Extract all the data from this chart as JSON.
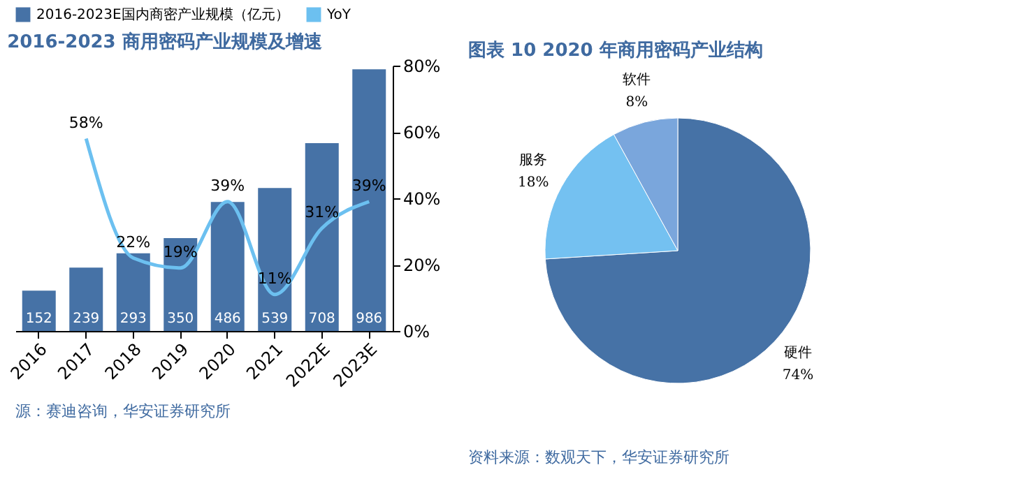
{
  "chart_data": [
    {
      "type": "bar",
      "title": "2016-2023 商用密码产业规模及增速",
      "categories": [
        "2016",
        "2017",
        "2018",
        "2019",
        "2020",
        "2021",
        "2022E",
        "2023E"
      ],
      "series": [
        {
          "name": "2016-2023E国内商密产业规模（亿元）",
          "color": "#4672a6",
          "values": [
            152,
            239,
            293,
            350,
            486,
            539,
            708,
            986
          ],
          "value_labels": [
            "152",
            "239",
            "293",
            "350",
            "486",
            "539",
            "708",
            "986"
          ]
        },
        {
          "name": "YoY",
          "type": "line",
          "axis": "y2",
          "color": "#6cc0f0",
          "values": [
            null,
            58,
            22,
            19,
            39,
            11,
            31,
            39
          ],
          "value_labels": [
            null,
            "58%",
            "22%",
            "19%",
            "39%",
            "11%",
            "31%",
            "39%"
          ]
        }
      ],
      "y2lim": [
        0,
        80
      ],
      "y2ticks": [
        {
          "value": 0,
          "label": "0%"
        },
        {
          "value": 20,
          "label": "20%"
        },
        {
          "value": 40,
          "label": "40%"
        },
        {
          "value": 60,
          "label": "60%"
        },
        {
          "value": 80,
          "label": "80%"
        }
      ],
      "legend": "top",
      "grid": false,
      "annotations": [
        "源：赛迪咨询，华安证券研究所"
      ]
    },
    {
      "type": "pie",
      "title": "图表 10 2020 年商用密码产业结构",
      "categories": [
        "硬件",
        "服务",
        "软件"
      ],
      "values": [
        74,
        18,
        8
      ],
      "colors": [
        "#4672a6",
        "#74c1f1",
        "#7aa6dc"
      ],
      "value_labels": [
        "74%",
        "18%",
        "8%"
      ],
      "legend": false,
      "annotations": [
        "资料来源：数观天下，华安证券研究所"
      ]
    }
  ]
}
